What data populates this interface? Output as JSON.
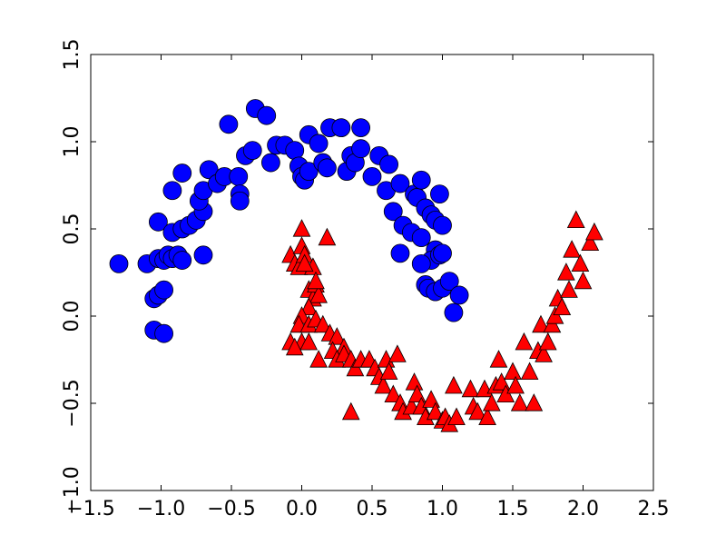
{
  "chart_data": {
    "type": "scatter",
    "title": "",
    "xlabel": "",
    "ylabel": "",
    "xlim": [
      -1.5,
      2.5
    ],
    "ylim": [
      -1.0,
      1.5
    ],
    "x_ticks": [
      -1.5,
      -1.0,
      -0.5,
      0.0,
      0.5,
      1.0,
      1.5,
      2.0,
      2.5
    ],
    "x_tick_labels": [
      "−1.5",
      "−1.0",
      "−0.5",
      "0.0",
      "0.5",
      "1.0",
      "1.5",
      "2.0",
      "2.5"
    ],
    "y_ticks": [
      -1.0,
      -0.5,
      0.0,
      0.5,
      1.0,
      1.5
    ],
    "y_tick_labels": [
      "−1.0",
      "−0.5",
      "0.0",
      "0.5",
      "1.0",
      "1.5"
    ],
    "grid": false,
    "legend": "none",
    "series": [
      {
        "marker": "circle",
        "color": "#0000ff",
        "points": [
          [
            -1.3,
            0.3
          ],
          [
            -1.1,
            0.3
          ],
          [
            -1.02,
            0.33
          ],
          [
            -0.98,
            0.32
          ],
          [
            -0.95,
            0.35
          ],
          [
            -0.92,
            0.33
          ],
          [
            -0.88,
            0.35
          ],
          [
            -0.85,
            0.32
          ],
          [
            -0.7,
            0.35
          ],
          [
            -1.05,
            0.1
          ],
          [
            -1.02,
            0.12
          ],
          [
            -0.98,
            0.15
          ],
          [
            -1.02,
            0.54
          ],
          [
            -0.92,
            0.48
          ],
          [
            -0.85,
            0.5
          ],
          [
            -0.8,
            0.52
          ],
          [
            -0.75,
            0.55
          ],
          [
            -0.7,
            0.6
          ],
          [
            -0.92,
            0.72
          ],
          [
            -0.85,
            0.82
          ],
          [
            -0.73,
            0.66
          ],
          [
            -0.7,
            0.72
          ],
          [
            -0.66,
            0.84
          ],
          [
            -0.6,
            0.76
          ],
          [
            -0.55,
            0.8
          ],
          [
            -0.45,
            0.8
          ],
          [
            -0.44,
            0.7
          ],
          [
            -0.44,
            0.66
          ],
          [
            -0.4,
            0.92
          ],
          [
            -0.35,
            0.95
          ],
          [
            -0.52,
            1.1
          ],
          [
            -0.33,
            1.19
          ],
          [
            -0.25,
            1.15
          ],
          [
            -0.22,
            0.88
          ],
          [
            -0.18,
            0.98
          ],
          [
            -0.12,
            0.98
          ],
          [
            -0.05,
            0.95
          ],
          [
            -0.02,
            0.86
          ],
          [
            0.0,
            0.8
          ],
          [
            0.02,
            0.78
          ],
          [
            0.05,
            0.83
          ],
          [
            0.05,
            1.04
          ],
          [
            0.12,
            0.99
          ],
          [
            0.15,
            0.88
          ],
          [
            0.18,
            0.85
          ],
          [
            0.2,
            1.08
          ],
          [
            0.28,
            1.08
          ],
          [
            0.32,
            0.83
          ],
          [
            0.35,
            0.92
          ],
          [
            0.38,
            0.88
          ],
          [
            0.42,
            1.08
          ],
          [
            0.42,
            0.96
          ],
          [
            0.5,
            0.8
          ],
          [
            0.55,
            0.92
          ],
          [
            0.6,
            0.72
          ],
          [
            0.62,
            0.87
          ],
          [
            0.65,
            0.6
          ],
          [
            0.7,
            0.76
          ],
          [
            0.72,
            0.52
          ],
          [
            0.78,
            0.48
          ],
          [
            0.8,
            0.7
          ],
          [
            0.82,
            0.68
          ],
          [
            0.85,
            0.78
          ],
          [
            0.88,
            0.62
          ],
          [
            0.92,
            0.58
          ],
          [
            0.95,
            0.55
          ],
          [
            0.98,
            0.7
          ],
          [
            1.0,
            0.52
          ],
          [
            0.85,
            0.45
          ],
          [
            0.95,
            0.38
          ],
          [
            0.7,
            0.36
          ],
          [
            0.92,
            0.32
          ],
          [
            0.98,
            0.35
          ],
          [
            1.0,
            0.36
          ],
          [
            0.85,
            0.3
          ],
          [
            0.88,
            0.18
          ],
          [
            0.9,
            0.16
          ],
          [
            0.95,
            0.14
          ],
          [
            1.0,
            0.16
          ],
          [
            1.05,
            0.2
          ],
          [
            1.08,
            0.02
          ],
          [
            1.12,
            0.12
          ],
          [
            -1.05,
            -0.08
          ],
          [
            -0.98,
            -0.1
          ]
        ]
      },
      {
        "marker": "triangle",
        "color": "#ff0000",
        "points": [
          [
            0.0,
            0.5
          ],
          [
            -0.08,
            0.35
          ],
          [
            -0.05,
            0.3
          ],
          [
            -0.02,
            0.28
          ],
          [
            0.0,
            0.4
          ],
          [
            0.02,
            0.35
          ],
          [
            0.08,
            0.28
          ],
          [
            0.18,
            0.45
          ],
          [
            0.05,
            0.15
          ],
          [
            0.08,
            0.1
          ],
          [
            0.1,
            0.18
          ],
          [
            0.12,
            0.12
          ],
          [
            0.05,
            0.05
          ],
          [
            0.0,
            0.0
          ],
          [
            -0.02,
            -0.05
          ],
          [
            0.05,
            -0.05
          ],
          [
            0.1,
            -0.02
          ],
          [
            0.15,
            -0.05
          ],
          [
            -0.08,
            -0.15
          ],
          [
            0.0,
            -0.15
          ],
          [
            0.05,
            -0.15
          ],
          [
            0.2,
            -0.1
          ],
          [
            0.25,
            -0.12
          ],
          [
            0.3,
            -0.18
          ],
          [
            0.22,
            -0.2
          ],
          [
            0.25,
            -0.25
          ],
          [
            0.3,
            -0.22
          ],
          [
            0.35,
            -0.25
          ],
          [
            0.38,
            -0.3
          ],
          [
            0.42,
            -0.25
          ],
          [
            0.48,
            -0.25
          ],
          [
            0.52,
            -0.3
          ],
          [
            0.55,
            -0.35
          ],
          [
            0.58,
            -0.4
          ],
          [
            0.6,
            -0.25
          ],
          [
            0.62,
            -0.32
          ],
          [
            0.68,
            -0.22
          ],
          [
            0.65,
            -0.45
          ],
          [
            0.7,
            -0.5
          ],
          [
            0.72,
            -0.55
          ],
          [
            0.78,
            -0.52
          ],
          [
            0.8,
            -0.38
          ],
          [
            0.82,
            -0.45
          ],
          [
            0.85,
            -0.52
          ],
          [
            0.88,
            -0.58
          ],
          [
            0.92,
            -0.48
          ],
          [
            0.95,
            -0.55
          ],
          [
            1.0,
            -0.6
          ],
          [
            1.02,
            -0.58
          ],
          [
            1.05,
            -0.62
          ],
          [
            1.08,
            -0.4
          ],
          [
            1.1,
            -0.58
          ],
          [
            1.2,
            -0.42
          ],
          [
            1.22,
            -0.52
          ],
          [
            1.25,
            -0.55
          ],
          [
            1.3,
            -0.42
          ],
          [
            1.32,
            -0.58
          ],
          [
            1.35,
            -0.5
          ],
          [
            1.38,
            -0.4
          ],
          [
            1.4,
            -0.25
          ],
          [
            1.42,
            -0.38
          ],
          [
            1.45,
            -0.45
          ],
          [
            1.5,
            -0.32
          ],
          [
            1.52,
            -0.4
          ],
          [
            1.55,
            -0.5
          ],
          [
            1.58,
            -0.15
          ],
          [
            1.62,
            -0.32
          ],
          [
            1.65,
            -0.5
          ],
          [
            1.68,
            -0.2
          ],
          [
            1.7,
            -0.05
          ],
          [
            1.72,
            -0.22
          ],
          [
            1.75,
            -0.15
          ],
          [
            1.78,
            -0.05
          ],
          [
            1.8,
            0.0
          ],
          [
            1.82,
            0.1
          ],
          [
            1.85,
            0.05
          ],
          [
            1.88,
            0.25
          ],
          [
            1.9,
            0.15
          ],
          [
            1.92,
            0.38
          ],
          [
            1.95,
            0.55
          ],
          [
            1.98,
            0.3
          ],
          [
            2.0,
            0.2
          ],
          [
            2.05,
            0.42
          ],
          [
            2.08,
            0.48
          ],
          [
            -0.05,
            -0.18
          ],
          [
            0.12,
            -0.25
          ],
          [
            0.35,
            -0.55
          ],
          [
            0.02,
            0.3
          ],
          [
            0.1,
            0.2
          ]
        ]
      }
    ]
  }
}
